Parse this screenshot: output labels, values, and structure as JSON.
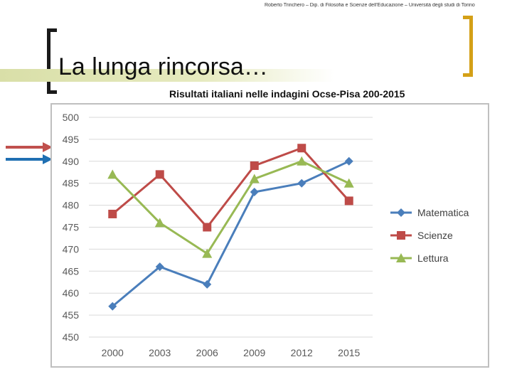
{
  "header": {
    "credit": "Roberto Trinchero – Dip. di Filosofia e Scienze dell'Educazione – Università degli studi di Torino"
  },
  "slide": {
    "title": "La lunga rincorsa…",
    "chart_title": "Risultati italiani nelle indagini Ocse-Pisa 200-2015"
  },
  "chart_data": {
    "type": "line",
    "categories": [
      "2000",
      "2003",
      "2006",
      "2009",
      "2012",
      "2015"
    ],
    "ylim": [
      450,
      500
    ],
    "yticks": [
      450,
      455,
      460,
      465,
      470,
      475,
      480,
      485,
      490,
      495,
      500
    ],
    "grid": true,
    "legend_position": "right",
    "series": [
      {
        "name": "Matematica",
        "values": [
          457,
          466,
          462,
          483,
          485,
          490
        ],
        "color": "#4a7ebb",
        "marker": "diamond"
      },
      {
        "name": "Scienze",
        "values": [
          478,
          487,
          475,
          489,
          493,
          481
        ],
        "color": "#be4b48",
        "marker": "square"
      },
      {
        "name": "Lettura",
        "values": [
          487,
          476,
          469,
          486,
          490,
          485
        ],
        "color": "#98b954",
        "marker": "triangle"
      }
    ]
  },
  "side_arrows": [
    {
      "color": "#c0504d"
    },
    {
      "color": "#1f6fb2"
    }
  ]
}
